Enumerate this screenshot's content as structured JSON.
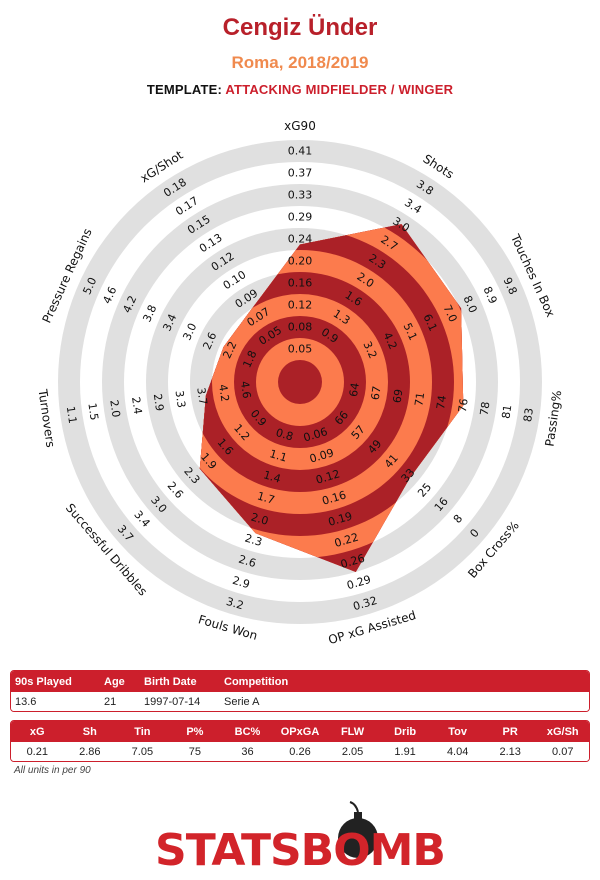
{
  "header": {
    "player_name": "Cengiz Ünder",
    "team_season": "Roma, 2018/2019",
    "template_label": "TEMPLATE:",
    "template_value": "ATTACKING MIDFIELDER / WINGER"
  },
  "chart_data": {
    "type": "radar",
    "rings": 10,
    "metrics": [
      {
        "name": "xG90",
        "ticks": [
          "0.05",
          "0.08",
          "0.12",
          "0.16",
          "0.20",
          "0.24",
          "0.29",
          "0.33",
          "0.37",
          "0.41"
        ],
        "value": 0.21
      },
      {
        "name": "Shots",
        "ticks": [
          "0.9",
          "1.3",
          "1.6",
          "2.0",
          "2.3",
          "2.7",
          "3.0",
          "3.4",
          "3.8"
        ],
        "value": 2.86
      },
      {
        "name": "Touches In Box",
        "ticks": [
          "3.2",
          "4.2",
          "5.1",
          "6.1",
          "7.0",
          "8.0",
          "8.9",
          "9.8"
        ],
        "value": 7.05
      },
      {
        "name": "Passing%",
        "ticks": [
          "64",
          "67",
          "69",
          "71",
          "74",
          "76",
          "78",
          "81",
          "83"
        ],
        "value": 75
      },
      {
        "name": "Box Cross%",
        "ticks": [
          "66",
          "57",
          "49",
          "41",
          "33",
          "25",
          "16",
          "8",
          "0"
        ],
        "value": 36
      },
      {
        "name": "OP xG Assisted",
        "ticks": [
          "0.06",
          "0.09",
          "0.12",
          "0.16",
          "0.19",
          "0.22",
          "0.26",
          "0.29",
          "0.32"
        ],
        "value": 0.26
      },
      {
        "name": "Fouls Won",
        "ticks": [
          "0.8",
          "1.1",
          "1.4",
          "1.7",
          "2.0",
          "2.3",
          "2.6",
          "2.9",
          "3.2"
        ],
        "value": 2.05
      },
      {
        "name": "Successful Dribbles",
        "ticks": [
          "0.9",
          "1.2",
          "1.6",
          "1.9",
          "2.3",
          "2.6",
          "3.0",
          "3.4",
          "3.7"
        ],
        "value": 1.91
      },
      {
        "name": "Turnovers",
        "ticks": [
          "4.6",
          "4.2",
          "3.7",
          "3.3",
          "2.9",
          "2.4",
          "2.0",
          "1.5",
          "1.1"
        ],
        "value": 4.04
      },
      {
        "name": "Pressure Regains",
        "ticks": [
          "1.8",
          "2.2",
          "2.6",
          "3.0",
          "3.4",
          "3.8",
          "4.2",
          "4.6",
          "5.0"
        ],
        "value": 2.13
      },
      {
        "name": "xG/Shot",
        "ticks": [
          "0.05",
          "0.07",
          "0.09",
          "0.10",
          "0.12",
          "0.13",
          "0.15",
          "0.17",
          "0.18"
        ],
        "value": 0.07
      }
    ],
    "colors": {
      "ring_dark": "#ab2127",
      "ring_light": "#fc7b4d",
      "ring_gray": "#e0e0e0",
      "background": "#ffffff"
    }
  },
  "table1": {
    "headers": [
      "90s Played",
      "Age",
      "Birth Date",
      "Competition"
    ],
    "values": [
      "13.6",
      "21",
      "1997-07-14",
      "Serie A"
    ]
  },
  "table2": {
    "headers": [
      "xG",
      "Sh",
      "Tin",
      "P%",
      "BC%",
      "OPxGA",
      "FLW",
      "Drib",
      "Tov",
      "PR",
      "xG/Sh"
    ],
    "values": [
      "0.21",
      "2.86",
      "7.05",
      "75",
      "36",
      "0.26",
      "2.05",
      "1.91",
      "4.04",
      "2.13",
      "0.07"
    ]
  },
  "footer": {
    "units_note": "All units in per 90",
    "logo_text": "STATSBOMB"
  }
}
